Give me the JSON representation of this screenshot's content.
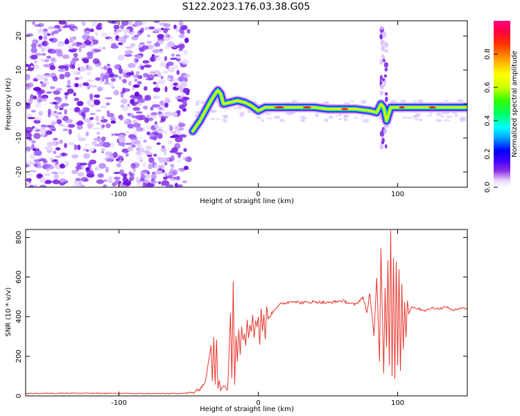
{
  "title": "S122.2023.176.03.38.G05",
  "chart_data": [
    {
      "type": "heatmap",
      "xlabel": "Height of straight line (km)",
      "ylabel": "Frequency (Hz)",
      "xlim": [
        -167,
        150
      ],
      "ylim": [
        -24.5,
        24.5
      ],
      "xticks": [
        -100,
        0,
        100
      ],
      "yticks": [
        20,
        10,
        0,
        -10,
        -20
      ],
      "grid": false,
      "colorbar": {
        "label": "Normalized spectral amplitude",
        "ticks": [
          0.0,
          0.2,
          0.4,
          0.6,
          0.8
        ],
        "range": [
          0,
          1
        ],
        "colors": [
          "#ffffff",
          "#e8d6ff",
          "#8a2be2",
          "#4000ff",
          "#0000ff",
          "#00aaff",
          "#00ffff",
          "#00ff66",
          "#33ff00",
          "#ccff00",
          "#ffff00",
          "#ffaa00",
          "#ff3300",
          "#ff0044",
          "#ff0080"
        ]
      },
      "ridge": {
        "x": [
          -47,
          -42,
          -38,
          -34,
          -31,
          -29,
          -27,
          -25,
          -20,
          -15,
          -10,
          -5,
          0,
          5,
          10,
          20,
          30,
          40,
          50,
          60,
          70,
          80,
          85,
          88,
          90,
          92,
          95,
          100,
          110,
          120,
          130,
          140,
          150
        ],
        "y": [
          -8,
          -5,
          -2,
          1,
          3,
          4,
          3,
          0,
          0.5,
          1,
          0.5,
          -0.5,
          -2,
          -1,
          -1,
          -1,
          -1,
          -1,
          -1.5,
          -1.5,
          -1.5,
          -2,
          -2.5,
          0,
          -1,
          -5,
          -1,
          -1,
          -1,
          -1,
          -1,
          -1,
          -1
        ]
      },
      "noise_region_x": [
        -167,
        -50
      ]
    },
    {
      "type": "line",
      "xlabel": "Height of straight line (km)",
      "ylabel": "SNR (10 * v/v)",
      "xlim": [
        -167,
        150
      ],
      "ylim": [
        0,
        840
      ],
      "xticks": [
        -100,
        0,
        100
      ],
      "yticks": [
        0,
        200,
        400,
        600,
        800
      ],
      "grid": false,
      "series": [
        {
          "color": "#e8332a",
          "x": [
            -167,
            -140,
            -110,
            -80,
            -60,
            -47,
            -42,
            -38,
            -34,
            -33,
            -32,
            -31,
            -30,
            -29,
            -28,
            -27,
            -25,
            -22,
            -20,
            -19,
            -18,
            -17,
            -16,
            -15,
            -14,
            -13,
            -12,
            -11,
            -10,
            -9,
            -8,
            -7,
            -6,
            -5,
            -4,
            -3,
            -2,
            -1,
            0,
            1,
            2,
            3,
            4,
            5,
            6,
            7,
            8,
            10,
            12,
            15,
            20,
            25,
            30,
            40,
            50,
            60,
            70,
            75,
            78,
            80,
            83,
            85,
            87,
            88,
            90,
            91,
            92,
            93,
            94,
            95,
            96,
            97,
            98,
            99,
            100,
            101,
            102,
            103,
            104,
            105,
            106,
            107,
            108,
            110,
            115,
            120,
            125,
            130,
            135,
            140,
            145,
            150
          ],
          "y": [
            12,
            14,
            13,
            12,
            12,
            15,
            35,
            70,
            250,
            80,
            300,
            60,
            290,
            40,
            80,
            30,
            50,
            30,
            420,
            90,
            580,
            60,
            300,
            180,
            340,
            210,
            350,
            280,
            320,
            260,
            390,
            290,
            360,
            330,
            410,
            300,
            380,
            350,
            400,
            260,
            440,
            330,
            410,
            280,
            450,
            390,
            400,
            420,
            440,
            460,
            470,
            480,
            470,
            475,
            470,
            480,
            460,
            500,
            420,
            520,
            300,
            600,
            180,
            740,
            120,
            550,
            250,
            690,
            150,
            840,
            100,
            700,
            80,
            680,
            150,
            640,
            120,
            560,
            230,
            470,
            300,
            480,
            420,
            450,
            440,
            430,
            445,
            440,
            450,
            430,
            445,
            440
          ]
        }
      ]
    }
  ]
}
